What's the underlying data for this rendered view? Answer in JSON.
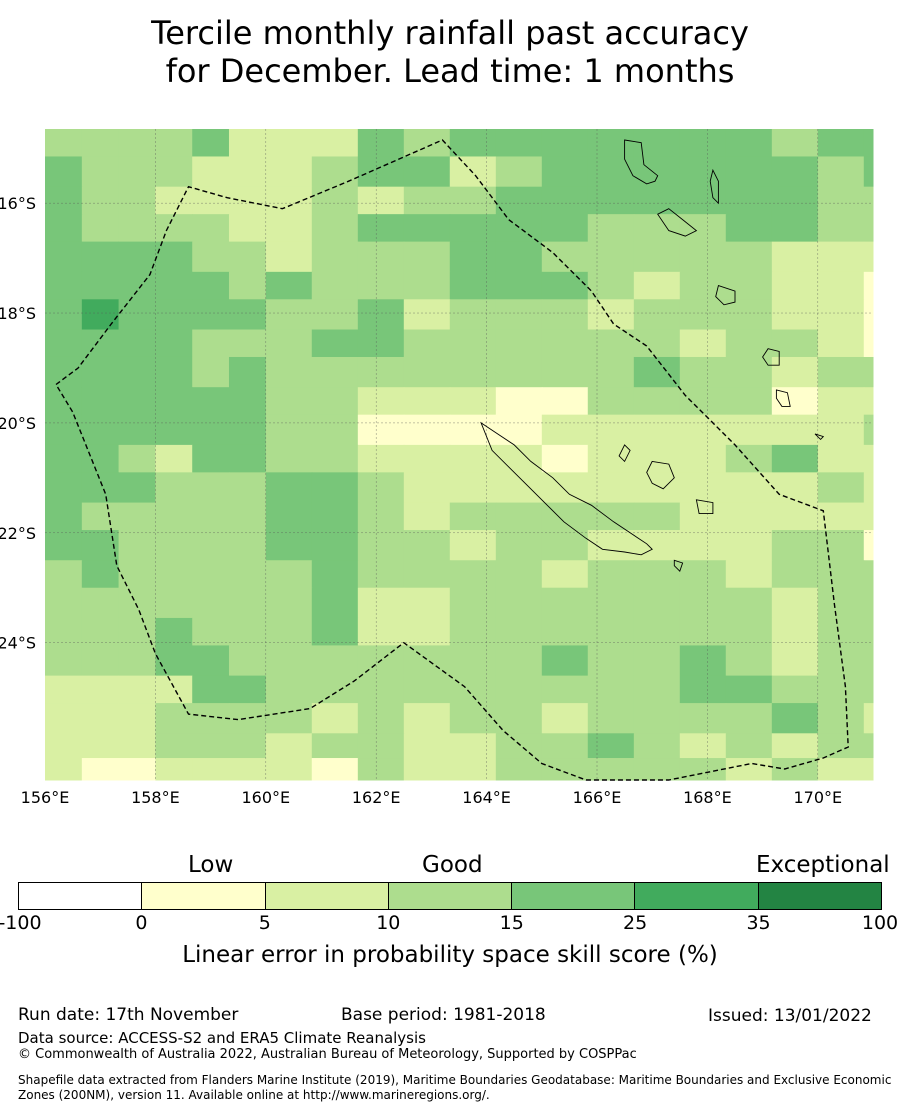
{
  "title": {
    "line1": "Tercile monthly rainfall past accuracy",
    "line2": "for December. Lead time: 1 months"
  },
  "map": {
    "lon_range": [
      156,
      171
    ],
    "lat_range": [
      -26.5,
      -14.65
    ],
    "lon_ticks": [
      156,
      158,
      160,
      162,
      164,
      166,
      168,
      170
    ],
    "lat_ticks": [
      -16,
      -18,
      -20,
      -22,
      -24
    ],
    "lon_tick_labels": [
      "156°E",
      "158°E",
      "160°E",
      "162°E",
      "164°E",
      "166°E",
      "168°E",
      "170°E"
    ],
    "lat_tick_labels": [
      "16°S",
      "18°S",
      "20°S",
      "22°S",
      "24°S"
    ],
    "cell_lon_edges": [
      156,
      156.667,
      157.333,
      158,
      158.667,
      159.333,
      160,
      160.833,
      161.667,
      162.5,
      163.333,
      164.167,
      165,
      165.833,
      166.667,
      167.5,
      168.333,
      169.167,
      170,
      170.833,
      171
    ],
    "cell_lat_edges": [
      -14.65,
      -15.15,
      -15.7,
      -16.2,
      -16.7,
      -17.25,
      -17.75,
      -18.3,
      -18.8,
      -19.35,
      -19.85,
      -20.4,
      -20.9,
      -21.45,
      -21.95,
      -22.5,
      -23.0,
      -23.55,
      -24.05,
      -24.6,
      -25.1,
      -25.65,
      -26.1,
      -26.5
    ],
    "skill_grid": [
      [
        3,
        3,
        3,
        3,
        4,
        2,
        2,
        2,
        4,
        3,
        4,
        4,
        4,
        4,
        4,
        4,
        4,
        3,
        4,
        4
      ],
      [
        4,
        3,
        3,
        3,
        2,
        2,
        2,
        3,
        4,
        4,
        2,
        3,
        4,
        4,
        4,
        4,
        4,
        4,
        3,
        4
      ],
      [
        4,
        3,
        3,
        2,
        2,
        2,
        2,
        3,
        2,
        3,
        3,
        4,
        4,
        4,
        4,
        4,
        4,
        4,
        3,
        3
      ],
      [
        4,
        3,
        3,
        3,
        3,
        2,
        2,
        3,
        4,
        4,
        4,
        4,
        4,
        3,
        3,
        3,
        4,
        4,
        3,
        3
      ],
      [
        4,
        4,
        4,
        4,
        3,
        3,
        2,
        3,
        3,
        3,
        4,
        4,
        3,
        3,
        3,
        3,
        3,
        2,
        2,
        2
      ],
      [
        4,
        4,
        4,
        4,
        4,
        3,
        4,
        3,
        3,
        3,
        4,
        4,
        4,
        3,
        2,
        3,
        3,
        2,
        2,
        1
      ],
      [
        4,
        5,
        4,
        4,
        4,
        4,
        3,
        3,
        4,
        2,
        3,
        3,
        3,
        2,
        3,
        3,
        3,
        2,
        2,
        1
      ],
      [
        4,
        4,
        4,
        4,
        3,
        3,
        3,
        4,
        4,
        3,
        3,
        3,
        3,
        3,
        3,
        2,
        3,
        3,
        2,
        1
      ],
      [
        4,
        4,
        4,
        4,
        3,
        4,
        3,
        3,
        3,
        3,
        3,
        3,
        3,
        3,
        4,
        3,
        3,
        2,
        3,
        3
      ],
      [
        4,
        4,
        4,
        4,
        4,
        4,
        3,
        3,
        2,
        2,
        2,
        1,
        1,
        3,
        3,
        3,
        3,
        1,
        2,
        2
      ],
      [
        4,
        4,
        4,
        4,
        4,
        4,
        3,
        3,
        1,
        1,
        1,
        1,
        2,
        2,
        2,
        2,
        2,
        2,
        2,
        3
      ],
      [
        4,
        4,
        3,
        2,
        4,
        4,
        3,
        3,
        2,
        2,
        2,
        2,
        1,
        2,
        2,
        2,
        3,
        4,
        2,
        2
      ],
      [
        4,
        4,
        4,
        3,
        3,
        3,
        4,
        4,
        3,
        2,
        2,
        2,
        2,
        2,
        2,
        2,
        2,
        2,
        3,
        2
      ],
      [
        4,
        3,
        3,
        3,
        3,
        3,
        4,
        4,
        3,
        2,
        3,
        3,
        3,
        3,
        3,
        2,
        2,
        2,
        2,
        2
      ],
      [
        4,
        4,
        3,
        3,
        3,
        3,
        4,
        4,
        3,
        3,
        2,
        3,
        3,
        2,
        2,
        2,
        2,
        3,
        3,
        1
      ],
      [
        3,
        4,
        3,
        3,
        3,
        3,
        3,
        4,
        3,
        3,
        3,
        3,
        2,
        3,
        3,
        3,
        2,
        3,
        3,
        3
      ],
      [
        3,
        3,
        3,
        3,
        3,
        3,
        3,
        4,
        2,
        2,
        3,
        3,
        3,
        3,
        3,
        3,
        3,
        2,
        3,
        3
      ],
      [
        3,
        3,
        3,
        4,
        3,
        3,
        3,
        4,
        2,
        2,
        3,
        3,
        3,
        3,
        3,
        3,
        3,
        2,
        3,
        3
      ],
      [
        3,
        3,
        3,
        4,
        4,
        3,
        3,
        3,
        3,
        3,
        3,
        3,
        4,
        3,
        3,
        4,
        3,
        2,
        3,
        3
      ],
      [
        2,
        2,
        2,
        2,
        4,
        4,
        3,
        3,
        3,
        3,
        3,
        3,
        3,
        3,
        3,
        4,
        4,
        3,
        3,
        3
      ],
      [
        2,
        2,
        2,
        3,
        3,
        3,
        3,
        2,
        3,
        2,
        3,
        3,
        2,
        3,
        3,
        3,
        3,
        4,
        3,
        2
      ],
      [
        2,
        2,
        2,
        3,
        3,
        3,
        2,
        3,
        3,
        2,
        2,
        3,
        3,
        4,
        3,
        2,
        3,
        2,
        3,
        3
      ],
      [
        2,
        1,
        1,
        2,
        2,
        2,
        2,
        1,
        3,
        2,
        2,
        3,
        3,
        3,
        3,
        3,
        2,
        3,
        2,
        2
      ]
    ],
    "eez_outline": [
      [
        156.2,
        -19.3
      ],
      [
        156.6,
        -19.0
      ],
      [
        157.2,
        -18.2
      ],
      [
        157.9,
        -17.3
      ],
      [
        158.2,
        -16.5
      ],
      [
        158.6,
        -15.7
      ],
      [
        159.3,
        -15.9
      ],
      [
        160.3,
        -16.1
      ],
      [
        161.5,
        -15.6
      ],
      [
        163.2,
        -14.85
      ],
      [
        163.8,
        -15.5
      ],
      [
        164.4,
        -16.3
      ],
      [
        165.2,
        -16.9
      ],
      [
        165.9,
        -17.6
      ],
      [
        166.3,
        -18.2
      ],
      [
        166.9,
        -18.6
      ],
      [
        167.6,
        -19.5
      ],
      [
        168.5,
        -20.4
      ],
      [
        169.3,
        -21.3
      ],
      [
        170.1,
        -21.6
      ],
      [
        170.3,
        -23.3
      ],
      [
        170.5,
        -24.8
      ],
      [
        170.55,
        -25.9
      ],
      [
        170.1,
        -26.1
      ],
      [
        169.4,
        -26.3
      ],
      [
        168.8,
        -26.2
      ],
      [
        167.3,
        -26.5
      ],
      [
        165.8,
        -26.5
      ],
      [
        165.0,
        -26.2
      ],
      [
        164.3,
        -25.6
      ],
      [
        163.6,
        -24.8
      ],
      [
        162.5,
        -24.0
      ],
      [
        161.6,
        -24.7
      ],
      [
        160.8,
        -25.2
      ],
      [
        159.5,
        -25.4
      ],
      [
        158.6,
        -25.3
      ],
      [
        158.0,
        -24.2
      ],
      [
        157.7,
        -23.4
      ],
      [
        157.3,
        -22.6
      ],
      [
        157.1,
        -21.3
      ],
      [
        156.9,
        -20.8
      ],
      [
        156.5,
        -19.8
      ],
      [
        156.2,
        -19.3
      ]
    ],
    "coastlines": {
      "new_caledonia": [
        [
          163.9,
          -20.0
        ],
        [
          164.2,
          -20.2
        ],
        [
          164.5,
          -20.4
        ],
        [
          164.8,
          -20.7
        ],
        [
          165.2,
          -21.0
        ],
        [
          165.5,
          -21.3
        ],
        [
          165.9,
          -21.5
        ],
        [
          166.3,
          -21.8
        ],
        [
          166.6,
          -22.0
        ],
        [
          166.9,
          -22.2
        ],
        [
          167.0,
          -22.3
        ],
        [
          166.8,
          -22.4
        ],
        [
          166.5,
          -22.35
        ],
        [
          166.1,
          -22.3
        ],
        [
          165.8,
          -22.1
        ],
        [
          165.4,
          -21.8
        ],
        [
          165.1,
          -21.5
        ],
        [
          164.7,
          -21.1
        ],
        [
          164.4,
          -20.8
        ],
        [
          164.1,
          -20.5
        ],
        [
          163.9,
          -20.0
        ]
      ],
      "vanuatu_espiritu_santo": [
        [
          166.5,
          -14.85
        ],
        [
          166.8,
          -14.9
        ],
        [
          166.85,
          -15.3
        ],
        [
          167.1,
          -15.5
        ],
        [
          167.05,
          -15.6
        ],
        [
          166.9,
          -15.65
        ],
        [
          166.65,
          -15.5
        ],
        [
          166.5,
          -15.2
        ],
        [
          166.5,
          -14.85
        ]
      ],
      "vanuatu_malakula": [
        [
          167.3,
          -16.1
        ],
        [
          167.55,
          -16.3
        ],
        [
          167.8,
          -16.5
        ],
        [
          167.6,
          -16.6
        ],
        [
          167.3,
          -16.5
        ],
        [
          167.1,
          -16.2
        ],
        [
          167.3,
          -16.1
        ]
      ],
      "vanuatu_efate": [
        [
          168.2,
          -17.5
        ],
        [
          168.5,
          -17.6
        ],
        [
          168.5,
          -17.8
        ],
        [
          168.3,
          -17.85
        ],
        [
          168.15,
          -17.7
        ],
        [
          168.2,
          -17.5
        ]
      ],
      "vanuatu_tanna": [
        [
          169.25,
          -19.4
        ],
        [
          169.45,
          -19.45
        ],
        [
          169.5,
          -19.7
        ],
        [
          169.35,
          -19.7
        ],
        [
          169.25,
          -19.55
        ],
        [
          169.25,
          -19.4
        ]
      ],
      "vanuatu_erromango": [
        [
          169.1,
          -18.65
        ],
        [
          169.3,
          -18.7
        ],
        [
          169.3,
          -18.95
        ],
        [
          169.1,
          -18.95
        ],
        [
          169.0,
          -18.8
        ],
        [
          169.1,
          -18.65
        ]
      ],
      "vanuatu_pentecost": [
        [
          168.1,
          -15.4
        ],
        [
          168.2,
          -15.6
        ],
        [
          168.2,
          -16.0
        ],
        [
          168.1,
          -15.9
        ],
        [
          168.05,
          -15.6
        ],
        [
          168.1,
          -15.4
        ]
      ],
      "loyalty_mare": [
        [
          167.8,
          -21.4
        ],
        [
          168.1,
          -21.45
        ],
        [
          168.1,
          -21.65
        ],
        [
          167.85,
          -21.65
        ],
        [
          167.8,
          -21.4
        ]
      ],
      "loyalty_lifou": [
        [
          167.0,
          -20.7
        ],
        [
          167.3,
          -20.75
        ],
        [
          167.4,
          -21.0
        ],
        [
          167.2,
          -21.2
        ],
        [
          167.0,
          -21.1
        ],
        [
          166.9,
          -20.9
        ],
        [
          167.0,
          -20.7
        ]
      ],
      "loyalty_ouvea": [
        [
          166.5,
          -20.4
        ],
        [
          166.6,
          -20.5
        ],
        [
          166.5,
          -20.7
        ],
        [
          166.4,
          -20.6
        ],
        [
          166.5,
          -20.4
        ]
      ],
      "isle_of_pines": [
        [
          167.4,
          -22.5
        ],
        [
          167.55,
          -22.55
        ],
        [
          167.5,
          -22.7
        ],
        [
          167.4,
          -22.6
        ],
        [
          167.4,
          -22.5
        ]
      ],
      "matthew_island": [
        [
          169.95,
          -20.2
        ],
        [
          170.1,
          -20.25
        ],
        [
          170.05,
          -20.3
        ],
        [
          169.95,
          -20.2
        ]
      ]
    }
  },
  "colorbar": {
    "categories": [
      "Low",
      "Good",
      "Exceptional"
    ],
    "ticks": [
      "-100",
      "0",
      "5",
      "10",
      "15",
      "25",
      "35",
      "100"
    ],
    "colors": [
      "#ffffff",
      "#ffffcc",
      "#d9f0a3",
      "#addd8e",
      "#78c679",
      "#41ab5d",
      "#238443"
    ],
    "label": "Linear error in probability space skill score (%)"
  },
  "footer": {
    "run_date": "Run date: 17th November",
    "base_period": "Base period: 1981-2018",
    "issued": "Issued: 13/01/2022",
    "data_source": "Data source: ACCESS-S2 and ERA5 Climate Reanalysis",
    "copyright": "© Commonwealth of Australia 2022, Australian Bureau of Meteorology, Supported by COSPPac",
    "shapefile": "Shapefile data extracted from Flanders Marine Institute (2019), Maritime Boundaries Geodatabase: Maritime Boundaries and Exclusive Economic Zones (200NM), version 11. Available online at http://www.marineregions.org/."
  }
}
